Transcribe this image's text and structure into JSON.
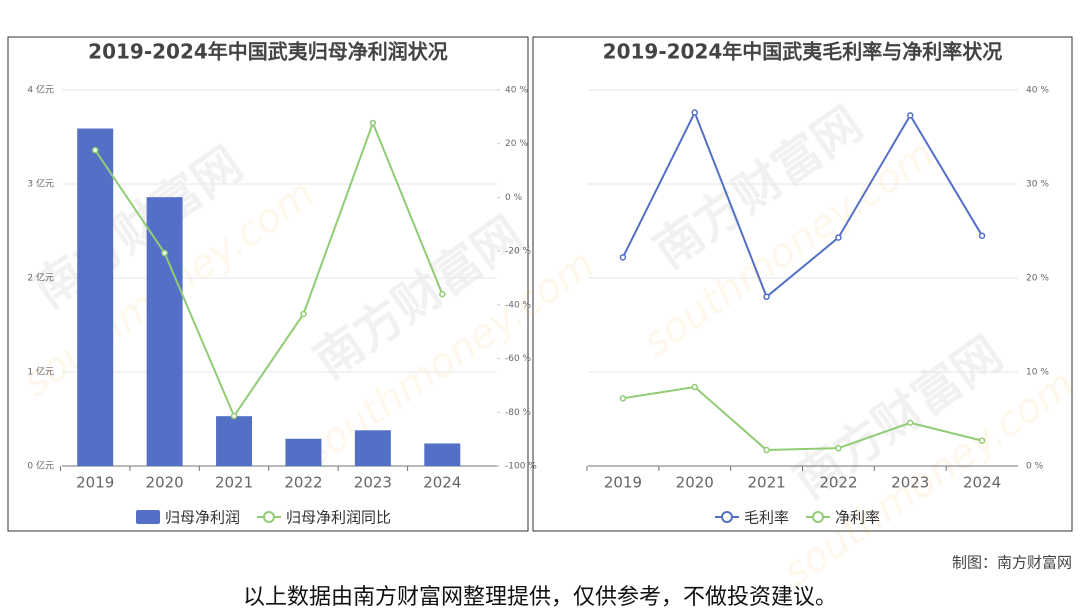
{
  "chart_data": [
    {
      "type": "bar",
      "title": "2019-2024年中国武夷归母净利润状况",
      "categories": [
        "2019",
        "2020",
        "2021",
        "2022",
        "2023",
        "2024"
      ],
      "series": [
        {
          "name": "归母净利润",
          "type": "bar",
          "color": "#5470c6",
          "values": [
            3.59,
            2.86,
            0.53,
            0.29,
            0.38,
            0.24
          ]
        },
        {
          "name": "归母净利润同比",
          "type": "line",
          "color": "#91cc75",
          "axis": "y2",
          "values": [
            17.6,
            -20.7,
            -81.4,
            -43.4,
            27.7,
            -36
          ]
        }
      ],
      "ylim": [
        0,
        4
      ],
      "yticks": [
        {
          "value": 0,
          "label": "0 亿元"
        },
        {
          "value": 1,
          "label": "1 亿元"
        },
        {
          "value": 2,
          "label": "2 亿元"
        },
        {
          "value": 3,
          "label": "3 亿元"
        },
        {
          "value": 4,
          "label": "4 亿元"
        }
      ],
      "y2lim": [
        -100,
        40
      ],
      "y2ticks": [
        {
          "value": -100,
          "label": "-100 %"
        },
        {
          "value": -80,
          "label": "-80 %"
        },
        {
          "value": -60,
          "label": "-60 %"
        },
        {
          "value": -40,
          "label": "-40 %"
        },
        {
          "value": -20,
          "label": "-20 %"
        },
        {
          "value": 0,
          "label": "0 %"
        },
        {
          "value": 20,
          "label": "20 %"
        },
        {
          "value": 40,
          "label": "40 %"
        }
      ],
      "grid": true
    },
    {
      "type": "line",
      "title": "2019-2024年中国武夷毛利率与净利率状况",
      "categories": [
        "2019",
        "2020",
        "2021",
        "2022",
        "2023",
        "2024"
      ],
      "series": [
        {
          "name": "毛利率",
          "type": "line",
          "color": "#5470c6",
          "values": [
            22.2,
            37.6,
            18.0,
            24.3,
            37.3,
            24.5
          ]
        },
        {
          "name": "净利率",
          "type": "line",
          "color": "#91cc75",
          "values": [
            7.2,
            8.4,
            1.7,
            1.9,
            4.6,
            2.7
          ]
        }
      ],
      "ylim": [
        0,
        40
      ],
      "yticks": [
        {
          "value": 0,
          "label": "0 %"
        },
        {
          "value": 10,
          "label": "10 %"
        },
        {
          "value": 20,
          "label": "20 %"
        },
        {
          "value": 30,
          "label": "30 %"
        },
        {
          "value": 40,
          "label": "40 %"
        }
      ],
      "y_axis_side": "right",
      "grid": true
    }
  ],
  "credit": "制图：南方财富网",
  "disclaimer": "以上数据由南方财富网整理提供，仅供参考，不做投资建议。",
  "watermark": [
    "南方财富网",
    "southmoney.com"
  ]
}
